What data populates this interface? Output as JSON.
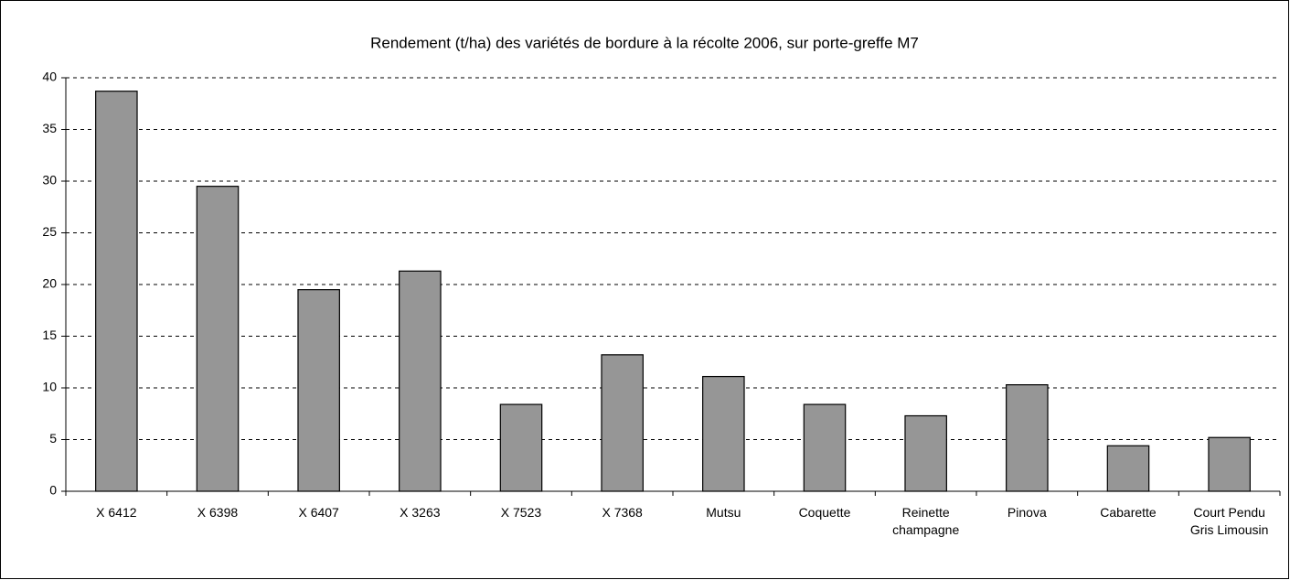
{
  "chart_data": {
    "type": "bar",
    "title": "Rendement (t/ha) des variétés de bordure à la récolte 2006, sur porte-greffe M7",
    "categories": [
      "X 6412",
      "X 6398",
      "X 6407",
      "X 3263",
      "X 7523",
      "X 7368",
      "Mutsu",
      "Coquette",
      "Reinette champagne",
      "Pinova",
      "Cabarette",
      "Court Pendu Gris Limousin"
    ],
    "values": [
      38.7,
      29.5,
      19.5,
      21.3,
      8.4,
      13.2,
      11.1,
      8.4,
      7.3,
      10.3,
      4.4,
      5.2
    ],
    "color": "#969696",
    "ylim": [
      0,
      40
    ],
    "yticks": [
      0,
      5,
      10,
      15,
      20,
      25,
      30,
      35,
      40
    ],
    "grid": true
  }
}
